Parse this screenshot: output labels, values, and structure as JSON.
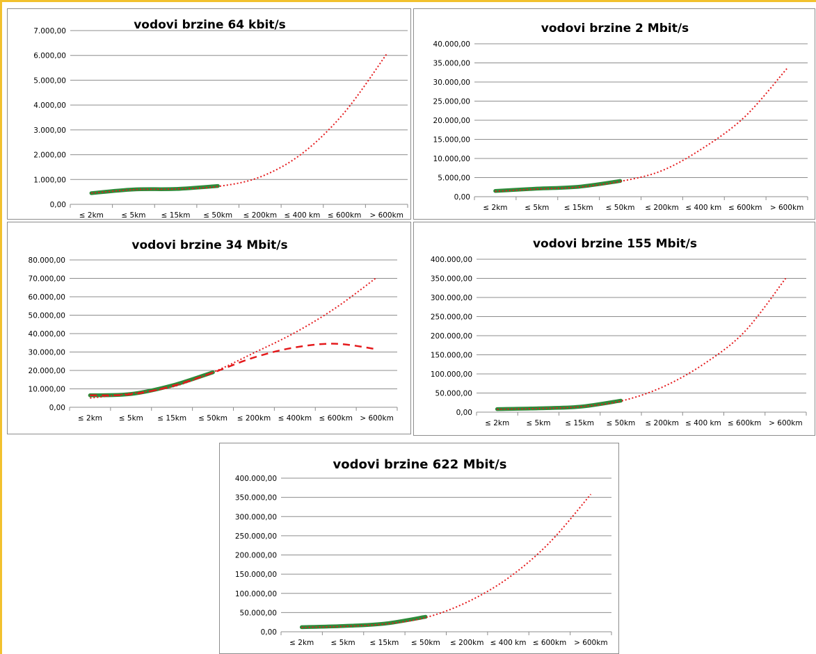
{
  "chart_data": [
    {
      "type": "line",
      "title": "vodovi brzine 64 kbit/s",
      "categories": [
        "≤ 2km",
        "≤ 5km",
        "≤ 15km",
        "≤ 50km",
        "≤ 200km",
        "≤ 400 km",
        "≤ 600km",
        "> 600km"
      ],
      "ylim": [
        0,
        7000
      ],
      "yticks": [
        "0,00",
        "1.000,00",
        "2.000,00",
        "3.000,00",
        "4.000,00",
        "5.000,00",
        "6.000,00",
        "7.000,00"
      ],
      "grid": true,
      "series": [
        {
          "style": "solid",
          "color": "#2e8b3a",
          "values": [
            450,
            600,
            620,
            740,
            null,
            null,
            null,
            null
          ]
        },
        {
          "style": "dotted",
          "color": "#e41a1c",
          "values": [
            450,
            590,
            620,
            720,
            1100,
            2050,
            3700,
            6050
          ]
        }
      ]
    },
    {
      "type": "line",
      "title": "vodovi brzine 2 Mbit/s",
      "categories": [
        "≤ 2km",
        "≤ 5km",
        "≤ 15km",
        "≤ 50km",
        "≤ 200km",
        "≤ 400 km",
        "≤ 600km",
        "> 600km"
      ],
      "ylim": [
        0,
        40000
      ],
      "yticks": [
        "0,00",
        "5.000,00",
        "10.000,00",
        "15.000,00",
        "20.000,00",
        "25.000,00",
        "30.000,00",
        "35.000,00",
        "40.000,00"
      ],
      "grid": true,
      "series": [
        {
          "style": "solid",
          "color": "#2e8b3a",
          "values": [
            1500,
            2100,
            2600,
            4100,
            null,
            null,
            null,
            null
          ]
        },
        {
          "style": "dotted",
          "color": "#e41a1c",
          "values": [
            1400,
            2000,
            2500,
            4000,
            6800,
            12800,
            21000,
            33500
          ]
        }
      ]
    },
    {
      "type": "line",
      "title": "vodovi brzine 34 Mbit/s",
      "categories": [
        "≤ 2km",
        "≤ 5km",
        "≤ 15km",
        "≤ 50km",
        "≤ 200km",
        "≤ 400km",
        "≤ 600km",
        "> 600km"
      ],
      "ylim": [
        0,
        80000
      ],
      "yticks": [
        "0,00",
        "10.000,00",
        "20.000,00",
        "30.000,00",
        "40.000,00",
        "50.000,00",
        "60.000,00",
        "70.000,00",
        "80.000,00"
      ],
      "grid": true,
      "series": [
        {
          "style": "solid",
          "color": "#2e8b3a",
          "values": [
            6500,
            7200,
            11800,
            19000,
            null,
            null,
            null,
            null
          ]
        },
        {
          "style": "dashed",
          "color": "#e41a1c",
          "values": [
            6500,
            7000,
            11500,
            18800,
            27000,
            32500,
            34500,
            31500
          ]
        },
        {
          "style": "dotted",
          "color": "#e41a1c",
          "values": [
            5000,
            7500,
            11000,
            19000,
            29500,
            40500,
            54000,
            70500
          ]
        }
      ]
    },
    {
      "type": "line",
      "title": "vodovi brzine 155 Mbit/s",
      "categories": [
        "≤ 2km",
        "≤ 5km",
        "≤ 15km",
        "≤ 50km",
        "≤ 200km",
        "≤ 400 km",
        "≤ 600km",
        "> 600km"
      ],
      "ylim": [
        0,
        400000
      ],
      "yticks": [
        "0,00",
        "50.000,00",
        "100.000,00",
        "150.000,00",
        "200.000,00",
        "250.000,00",
        "300.000,00",
        "350.000,00",
        "400.000,00"
      ],
      "grid": true,
      "series": [
        {
          "style": "solid",
          "color": "#2e8b3a",
          "values": [
            8000,
            10000,
            14000,
            30000,
            null,
            null,
            null,
            null
          ]
        },
        {
          "style": "dotted",
          "color": "#e41a1c",
          "values": [
            7500,
            9500,
            14000,
            29000,
            65000,
            125000,
            210000,
            350000
          ]
        }
      ]
    },
    {
      "type": "line",
      "title": "vodovi brzine 622 Mbit/s",
      "categories": [
        "≤ 2km",
        "≤ 5km",
        "≤ 15km",
        "≤ 50km",
        "≤ 200km",
        "≤ 400 km",
        "≤ 600km",
        "> 600km"
      ],
      "ylim": [
        0,
        400000
      ],
      "yticks": [
        "0,00",
        "50.000,00",
        "100.000,00",
        "150.000,00",
        "200.000,00",
        "250.000,00",
        "300.000,00",
        "350.000,00",
        "400.000,00"
      ],
      "grid": true,
      "series": [
        {
          "style": "solid",
          "color": "#2e8b3a",
          "values": [
            12000,
            15000,
            21000,
            39000,
            null,
            null,
            null,
            null
          ]
        },
        {
          "style": "dotted",
          "color": "#e41a1c",
          "values": [
            11000,
            14000,
            20000,
            37000,
            77000,
            140000,
            232000,
            358000
          ]
        }
      ]
    }
  ]
}
